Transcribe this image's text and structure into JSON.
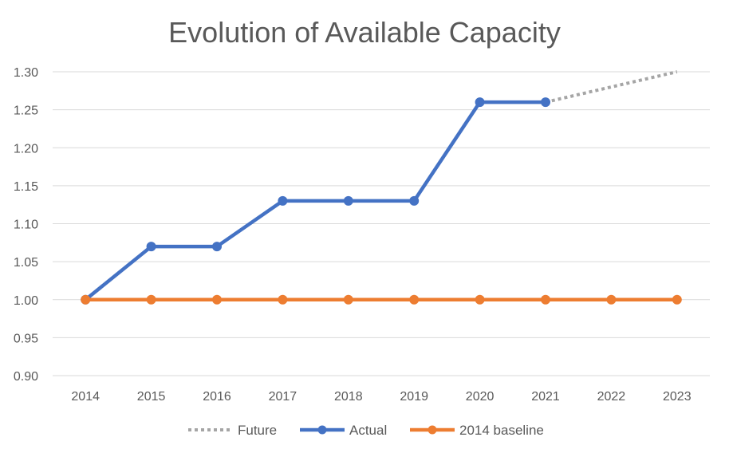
{
  "chart_data": {
    "type": "line",
    "title": "Evolution of Available Capacity",
    "xlabel": "",
    "ylabel": "",
    "categories": [
      "2014",
      "2015",
      "2016",
      "2017",
      "2018",
      "2019",
      "2020",
      "2021",
      "2022",
      "2023"
    ],
    "ylim": [
      0.9,
      1.3
    ],
    "yticks": [
      "0.90",
      "0.95",
      "1.00",
      "1.05",
      "1.10",
      "1.15",
      "1.20",
      "1.25",
      "1.30"
    ],
    "grid": true,
    "legend_position": "bottom",
    "series": [
      {
        "name": "Future",
        "color": "#a5a5a5",
        "style": "dotted",
        "markers": false,
        "values": [
          null,
          null,
          null,
          null,
          null,
          null,
          null,
          1.26,
          1.28,
          1.3
        ]
      },
      {
        "name": "Actual",
        "color": "#4472c4",
        "style": "solid",
        "markers": true,
        "values": [
          1.0,
          1.07,
          1.07,
          1.13,
          1.13,
          1.13,
          1.26,
          1.26,
          null,
          null
        ]
      },
      {
        "name": "2014 baseline",
        "color": "#ed7d31",
        "style": "solid",
        "markers": true,
        "values": [
          1.0,
          1.0,
          1.0,
          1.0,
          1.0,
          1.0,
          1.0,
          1.0,
          1.0,
          1.0
        ]
      }
    ]
  }
}
